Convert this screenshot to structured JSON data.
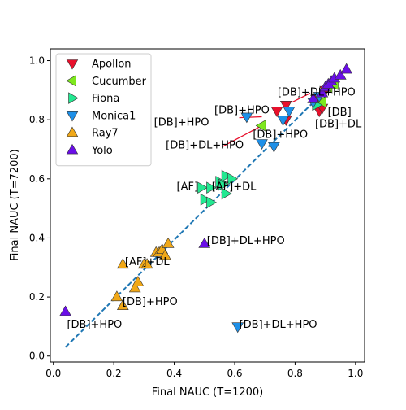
{
  "chart_data": {
    "type": "scatter",
    "xlabel": "Final NAUC (T=1200)",
    "ylabel": "Final NAUC (T=7200)",
    "xlim": [
      -0.01,
      1.03
    ],
    "ylim": [
      -0.02,
      1.04
    ],
    "xticks": [
      "0.0",
      "0.2",
      "0.4",
      "0.6",
      "0.8",
      "1.0"
    ],
    "yticks": [
      "0.0",
      "0.2",
      "0.4",
      "0.6",
      "0.8",
      "1.0"
    ],
    "grid": false,
    "legend_position": "top-left",
    "trend_line": {
      "style": "dashed",
      "color": "#1f77b4",
      "from": [
        0.04,
        0.03
      ],
      "to": [
        0.97,
        0.97
      ]
    },
    "series": [
      {
        "name": "Apollon",
        "marker": "triangle-down",
        "color": "#e8102c",
        "points": [
          [
            0.74,
            0.83
          ],
          [
            0.77,
            0.85
          ],
          [
            0.77,
            0.8
          ],
          [
            0.88,
            0.83
          ],
          [
            0.89,
            0.84
          ],
          [
            0.87,
            0.87
          ],
          [
            0.9,
            0.9
          ]
        ]
      },
      {
        "name": "Cucumber",
        "marker": "triangle-left",
        "color": "#7ee81e",
        "points": [
          [
            0.69,
            0.78
          ],
          [
            0.89,
            0.86
          ],
          [
            0.91,
            0.91
          ],
          [
            0.93,
            0.92
          ]
        ]
      },
      {
        "name": "Fiona",
        "marker": "triangle-right",
        "color": "#23e891",
        "points": [
          [
            0.49,
            0.57
          ],
          [
            0.52,
            0.57
          ],
          [
            0.5,
            0.53
          ],
          [
            0.52,
            0.52
          ],
          [
            0.55,
            0.59
          ],
          [
            0.57,
            0.61
          ],
          [
            0.59,
            0.6
          ],
          [
            0.57,
            0.55
          ],
          [
            0.56,
            0.58
          ],
          [
            0.87,
            0.85
          ]
        ]
      },
      {
        "name": "Monica1",
        "marker": "triangle-down",
        "color": "#1e90e8",
        "points": [
          [
            0.64,
            0.81
          ],
          [
            0.69,
            0.72
          ],
          [
            0.73,
            0.71
          ],
          [
            0.76,
            0.8
          ],
          [
            0.78,
            0.83
          ],
          [
            0.86,
            0.86
          ],
          [
            0.88,
            0.88
          ],
          [
            0.61,
            0.1
          ]
        ]
      },
      {
        "name": "Ray7",
        "marker": "triangle-up",
        "color": "#f0a818",
        "points": [
          [
            0.23,
            0.31
          ],
          [
            0.3,
            0.31
          ],
          [
            0.31,
            0.31
          ],
          [
            0.34,
            0.35
          ],
          [
            0.35,
            0.35
          ],
          [
            0.36,
            0.36
          ],
          [
            0.38,
            0.38
          ],
          [
            0.21,
            0.2
          ],
          [
            0.23,
            0.17
          ],
          [
            0.27,
            0.23
          ],
          [
            0.28,
            0.25
          ],
          [
            0.37,
            0.34
          ]
        ]
      },
      {
        "name": "Yolo",
        "marker": "triangle-up",
        "color": "#6a0ee8",
        "points": [
          [
            0.04,
            0.15
          ],
          [
            0.5,
            0.38
          ],
          [
            0.86,
            0.87
          ],
          [
            0.89,
            0.89
          ],
          [
            0.9,
            0.91
          ],
          [
            0.91,
            0.92
          ],
          [
            0.92,
            0.93
          ],
          [
            0.93,
            0.94
          ],
          [
            0.95,
            0.95
          ],
          [
            0.97,
            0.97
          ]
        ]
      }
    ],
    "annotations": [
      {
        "text": "[DB]+DL+HPO",
        "at": [
          0.742,
          0.895
        ]
      },
      {
        "text": "[DB]+HPO",
        "at": [
          0.533,
          0.835
        ]
      },
      {
        "text": "[DB]",
        "at": [
          0.908,
          0.828
        ]
      },
      {
        "text": "[DB]+HPO",
        "at": [
          0.333,
          0.794
        ]
      },
      {
        "text": "[DB]+DL",
        "at": [
          0.866,
          0.788
        ]
      },
      {
        "text": "[DB]+HPO",
        "at": [
          0.66,
          0.752
        ]
      },
      {
        "text": "[DB]+DL+HPO",
        "at": [
          0.372,
          0.716
        ]
      },
      {
        "text": "[AF]",
        "at": [
          0.408,
          0.576
        ]
      },
      {
        "text": "[AF]+DL",
        "at": [
          0.524,
          0.576
        ]
      },
      {
        "text": "[DB]+DL+HPO",
        "at": [
          0.508,
          0.393
        ]
      },
      {
        "text": "[AF]+DL",
        "at": [
          0.237,
          0.322
        ]
      },
      {
        "text": "[DB]+HPO",
        "at": [
          0.229,
          0.186
        ]
      },
      {
        "text": "[DB]+HPO",
        "at": [
          0.045,
          0.109
        ]
      },
      {
        "text": "[DB]+DL+HPO",
        "at": [
          0.615,
          0.109
        ]
      }
    ],
    "annotation_arrows": [
      {
        "from": [
          0.615,
          0.807
        ],
        "to": [
          0.69,
          0.81
        ]
      },
      {
        "from": [
          0.558,
          0.708
        ],
        "to": [
          0.69,
          0.78
        ]
      },
      {
        "from": [
          0.788,
          0.858
        ],
        "to": [
          0.85,
          0.89
        ]
      }
    ]
  }
}
